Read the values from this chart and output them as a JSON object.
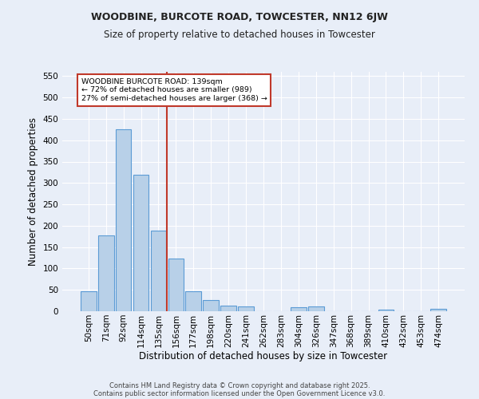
{
  "title1": "WOODBINE, BURCOTE ROAD, TOWCESTER, NN12 6JW",
  "title2": "Size of property relative to detached houses in Towcester",
  "xlabel": "Distribution of detached houses by size in Towcester",
  "ylabel": "Number of detached properties",
  "categories": [
    "50sqm",
    "71sqm",
    "92sqm",
    "114sqm",
    "135sqm",
    "156sqm",
    "177sqm",
    "198sqm",
    "220sqm",
    "241sqm",
    "262sqm",
    "283sqm",
    "304sqm",
    "326sqm",
    "347sqm",
    "368sqm",
    "389sqm",
    "410sqm",
    "432sqm",
    "453sqm",
    "474sqm"
  ],
  "values": [
    47,
    178,
    425,
    320,
    188,
    123,
    47,
    27,
    13,
    11,
    0,
    0,
    10,
    12,
    0,
    0,
    0,
    4,
    0,
    0,
    5
  ],
  "bar_color": "#b8d0e8",
  "bar_edge_color": "#5b9bd5",
  "background_color": "#e8eef8",
  "grid_color": "#ffffff",
  "vline_x": 4.5,
  "vline_color": "#c0392b",
  "annotation_line1": "WOODBINE BURCOTE ROAD: 139sqm",
  "annotation_line2": "← 72% of detached houses are smaller (989)",
  "annotation_line3": "27% of semi-detached houses are larger (368) →",
  "annotation_box_color": "#ffffff",
  "annotation_box_edge": "#c0392b",
  "ylim": [
    0,
    560
  ],
  "yticks": [
    0,
    50,
    100,
    150,
    200,
    250,
    300,
    350,
    400,
    450,
    500,
    550
  ],
  "footnote1": "Contains HM Land Registry data © Crown copyright and database right 2025.",
  "footnote2": "Contains public sector information licensed under the Open Government Licence v3.0."
}
